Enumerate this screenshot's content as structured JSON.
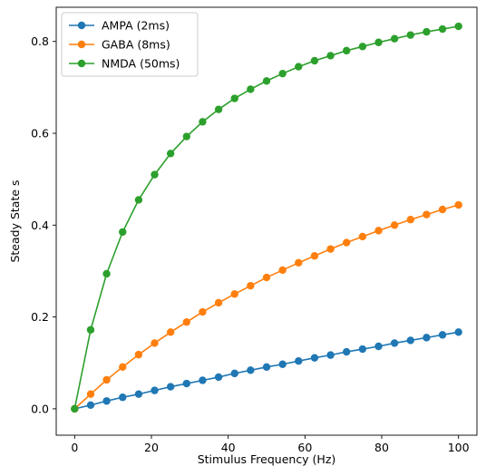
{
  "chart_data": {
    "type": "line",
    "title": "",
    "xlabel": "Stimulus Frequency (Hz)",
    "ylabel": "Steady State s",
    "xlim": [
      -4.8,
      104.8
    ],
    "ylim": [
      -0.0575,
      0.8745
    ],
    "xticks": [
      0,
      20,
      40,
      60,
      80,
      100
    ],
    "xtick_labels": [
      "0",
      "20",
      "40",
      "60",
      "80",
      "100"
    ],
    "yticks": [
      0.0,
      0.2,
      0.4,
      0.6,
      0.8
    ],
    "ytick_labels": [
      "0.0",
      "0.2",
      "0.4",
      "0.6",
      "0.8"
    ],
    "grid": false,
    "legend_position": "top-left",
    "x": [
      0,
      4.17,
      8.33,
      12.5,
      16.67,
      20.83,
      25,
      29.17,
      33.33,
      37.5,
      41.67,
      45.83,
      50,
      54.17,
      58.33,
      62.5,
      66.67,
      70.83,
      75,
      79.17,
      83.33,
      87.5,
      91.67,
      95.83,
      100
    ],
    "series": [
      {
        "name": "AMPA (2ms)",
        "color": "#1f77b4",
        "values": [
          0.0,
          0.008,
          0.017,
          0.025,
          0.032,
          0.04,
          0.048,
          0.055,
          0.062,
          0.069,
          0.077,
          0.084,
          0.091,
          0.097,
          0.104,
          0.111,
          0.117,
          0.124,
          0.13,
          0.136,
          0.143,
          0.149,
          0.155,
          0.161,
          0.167
        ]
      },
      {
        "name": "GABA (8ms)",
        "color": "#ff7f0e",
        "values": [
          0.0,
          0.032,
          0.063,
          0.091,
          0.118,
          0.143,
          0.167,
          0.189,
          0.211,
          0.231,
          0.25,
          0.268,
          0.286,
          0.302,
          0.318,
          0.333,
          0.348,
          0.362,
          0.375,
          0.388,
          0.4,
          0.412,
          0.423,
          0.434,
          0.444
        ]
      },
      {
        "name": "NMDA (50ms)",
        "color": "#2ca02c",
        "values": [
          0.0,
          0.172,
          0.294,
          0.385,
          0.455,
          0.51,
          0.556,
          0.593,
          0.625,
          0.652,
          0.676,
          0.696,
          0.714,
          0.73,
          0.745,
          0.758,
          0.769,
          0.78,
          0.789,
          0.798,
          0.806,
          0.814,
          0.821,
          0.827,
          0.833
        ]
      }
    ]
  }
}
